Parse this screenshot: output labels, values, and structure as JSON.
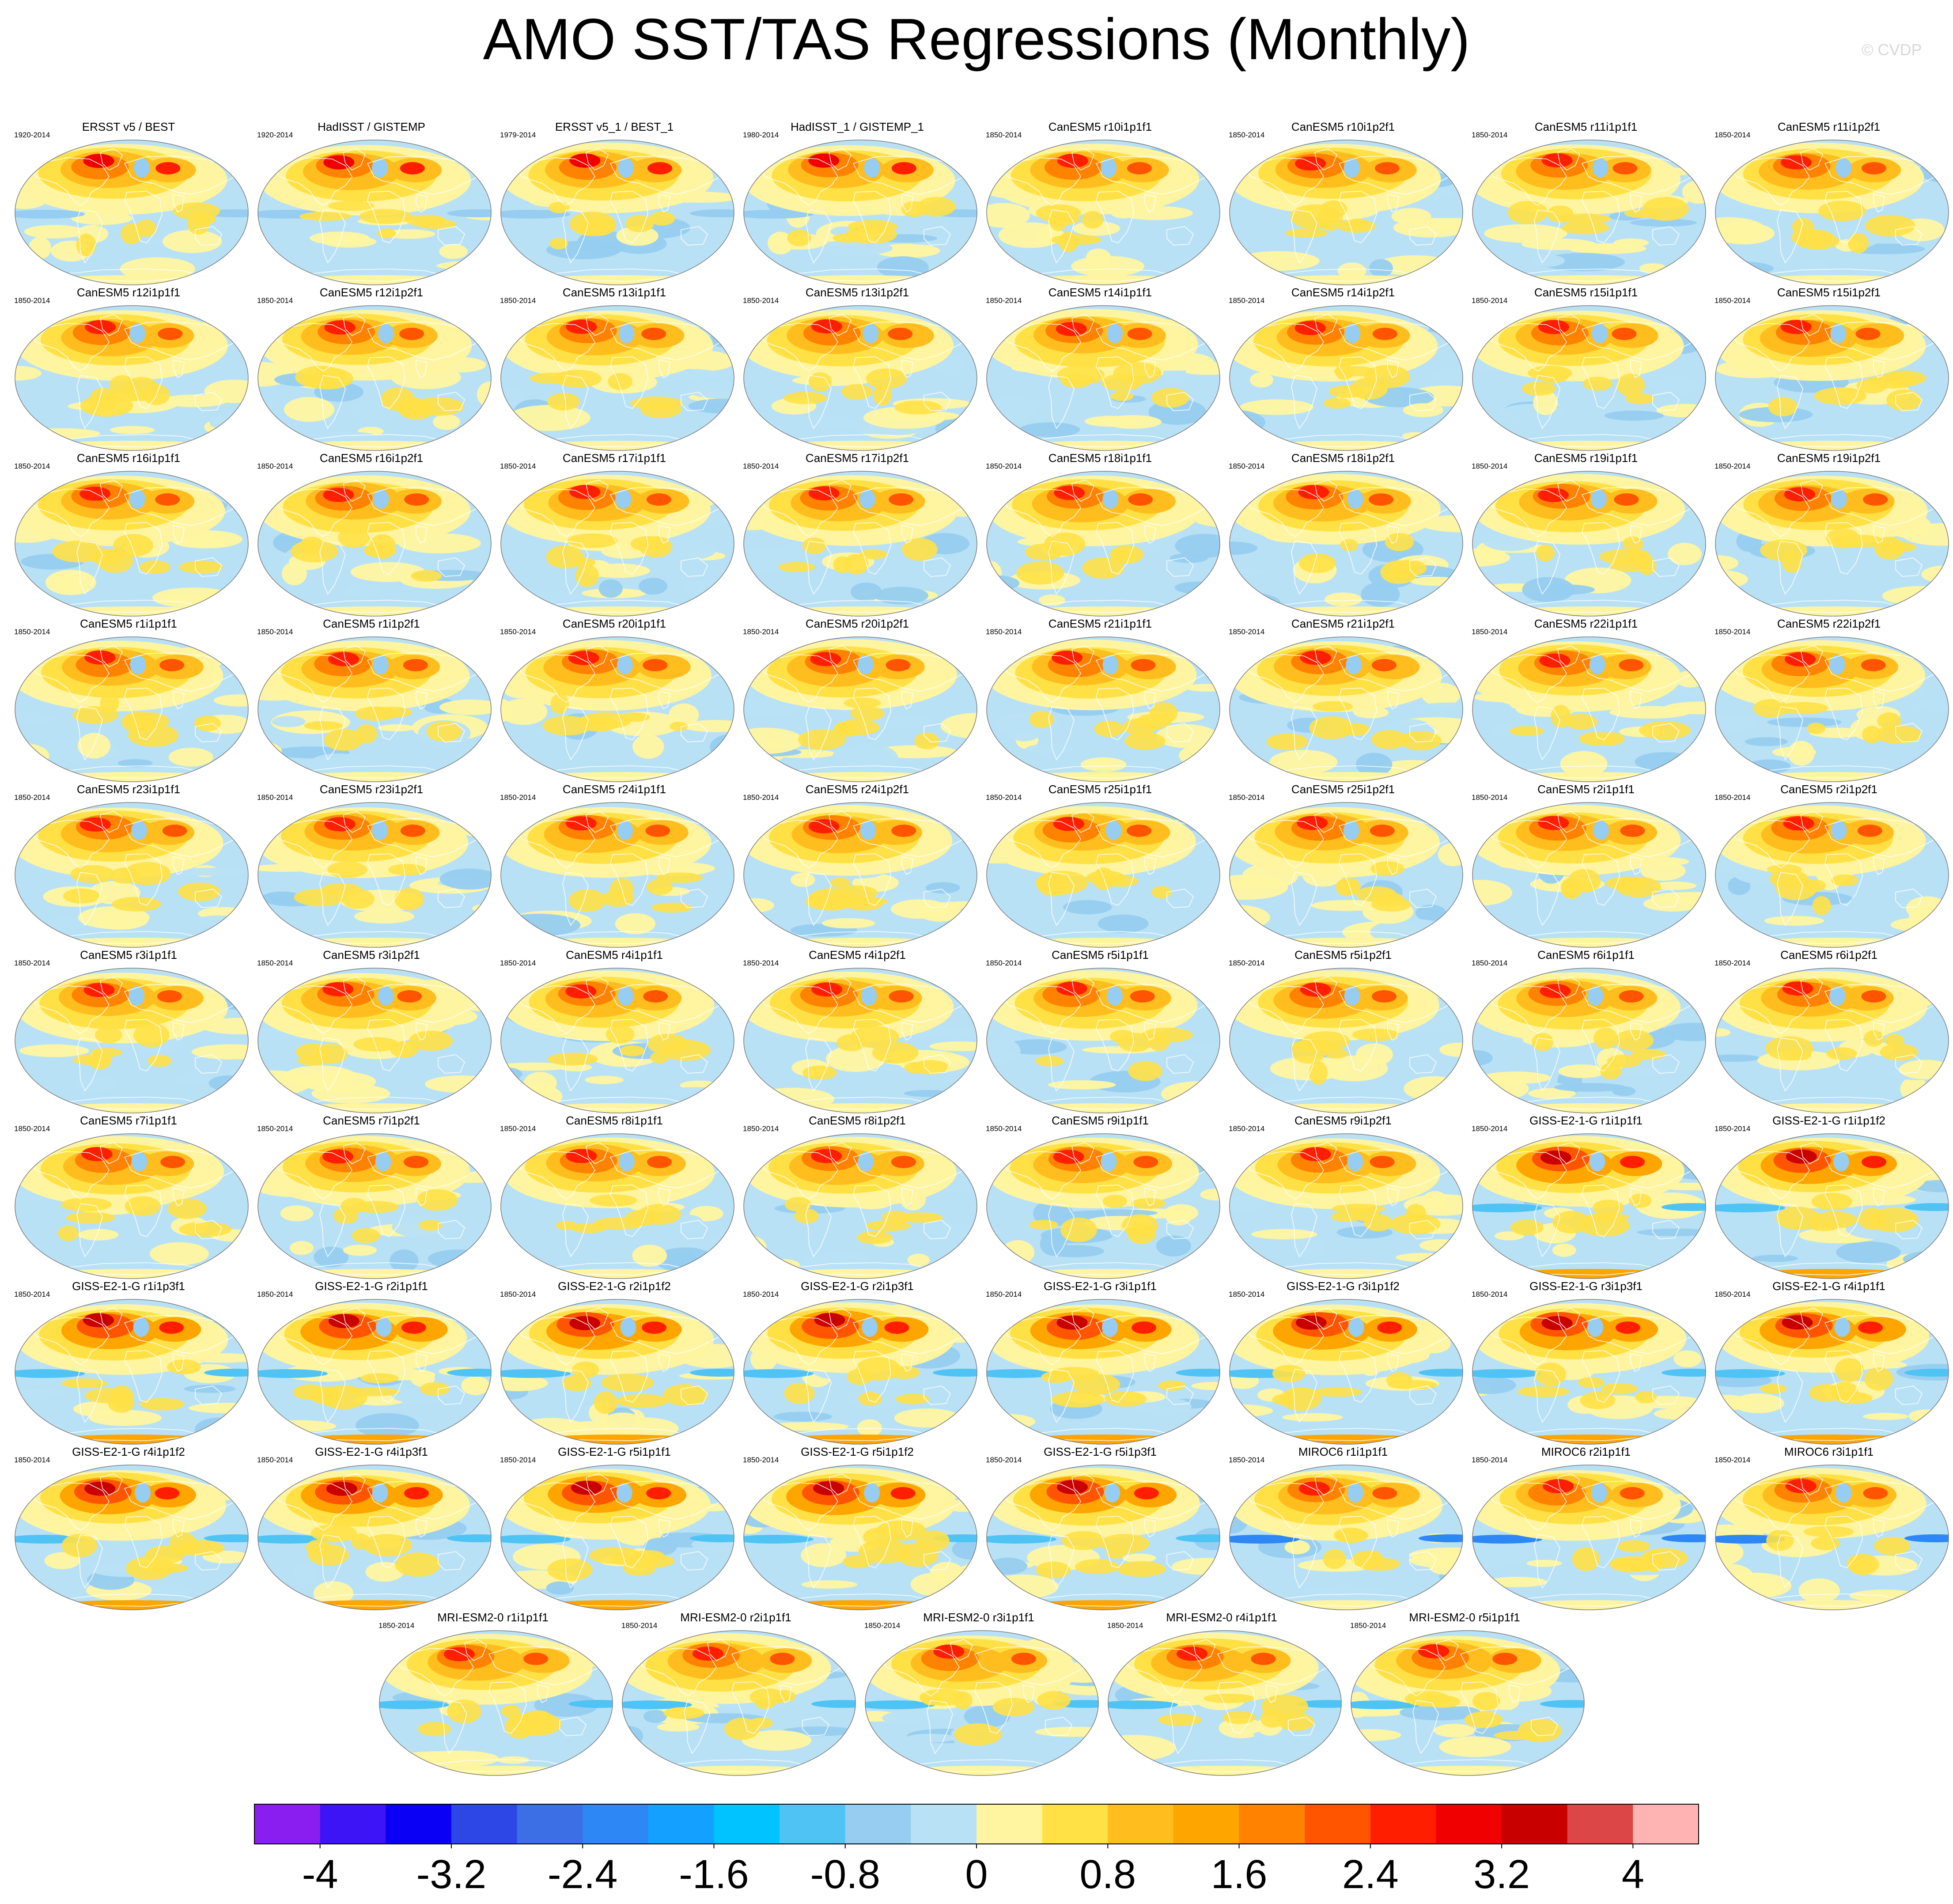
{
  "page": {
    "title": "AMO SST/TAS Regressions (Monthly)",
    "watermark": "© CVDP"
  },
  "chart_data": {
    "type": "heatmap",
    "projection": "global map panels",
    "panels": [
      {
        "title": "ERSST v5 / BEST",
        "years": "1920-2014"
      },
      {
        "title": "HadISST / GISTEMP",
        "years": "1920-2014"
      },
      {
        "title": "ERSST v5_1 / BEST_1",
        "years": "1979-2014"
      },
      {
        "title": "HadISST_1 / GISTEMP_1",
        "years": "1980-2014"
      },
      {
        "title": "CanESM5 r10i1p1f1",
        "years": "1850-2014"
      },
      {
        "title": "CanESM5 r10i1p2f1",
        "years": "1850-2014"
      },
      {
        "title": "CanESM5 r11i1p1f1",
        "years": "1850-2014"
      },
      {
        "title": "CanESM5 r11i1p2f1",
        "years": "1850-2014"
      },
      {
        "title": "CanESM5 r12i1p1f1",
        "years": "1850-2014"
      },
      {
        "title": "CanESM5 r12i1p2f1",
        "years": "1850-2014"
      },
      {
        "title": "CanESM5 r13i1p1f1",
        "years": "1850-2014"
      },
      {
        "title": "CanESM5 r13i1p2f1",
        "years": "1850-2014"
      },
      {
        "title": "CanESM5 r14i1p1f1",
        "years": "1850-2014"
      },
      {
        "title": "CanESM5 r14i1p2f1",
        "years": "1850-2014"
      },
      {
        "title": "CanESM5 r15i1p1f1",
        "years": "1850-2014"
      },
      {
        "title": "CanESM5 r15i1p2f1",
        "years": "1850-2014"
      },
      {
        "title": "CanESM5 r16i1p1f1",
        "years": "1850-2014"
      },
      {
        "title": "CanESM5 r16i1p2f1",
        "years": "1850-2014"
      },
      {
        "title": "CanESM5 r17i1p1f1",
        "years": "1850-2014"
      },
      {
        "title": "CanESM5 r17i1p2f1",
        "years": "1850-2014"
      },
      {
        "title": "CanESM5 r18i1p1f1",
        "years": "1850-2014"
      },
      {
        "title": "CanESM5 r18i1p2f1",
        "years": "1850-2014"
      },
      {
        "title": "CanESM5 r19i1p1f1",
        "years": "1850-2014"
      },
      {
        "title": "CanESM5 r19i1p2f1",
        "years": "1850-2014"
      },
      {
        "title": "CanESM5 r1i1p1f1",
        "years": "1850-2014"
      },
      {
        "title": "CanESM5 r1i1p2f1",
        "years": "1850-2014"
      },
      {
        "title": "CanESM5 r20i1p1f1",
        "years": "1850-2014"
      },
      {
        "title": "CanESM5 r20i1p2f1",
        "years": "1850-2014"
      },
      {
        "title": "CanESM5 r21i1p1f1",
        "years": "1850-2014"
      },
      {
        "title": "CanESM5 r21i1p2f1",
        "years": "1850-2014"
      },
      {
        "title": "CanESM5 r22i1p1f1",
        "years": "1850-2014"
      },
      {
        "title": "CanESM5 r22i1p2f1",
        "years": "1850-2014"
      },
      {
        "title": "CanESM5 r23i1p1f1",
        "years": "1850-2014"
      },
      {
        "title": "CanESM5 r23i1p2f1",
        "years": "1850-2014"
      },
      {
        "title": "CanESM5 r24i1p1f1",
        "years": "1850-2014"
      },
      {
        "title": "CanESM5 r24i1p2f1",
        "years": "1850-2014"
      },
      {
        "title": "CanESM5 r25i1p1f1",
        "years": "1850-2014"
      },
      {
        "title": "CanESM5 r25i1p2f1",
        "years": "1850-2014"
      },
      {
        "title": "CanESM5 r2i1p1f1",
        "years": "1850-2014"
      },
      {
        "title": "CanESM5 r2i1p2f1",
        "years": "1850-2014"
      },
      {
        "title": "CanESM5 r3i1p1f1",
        "years": "1850-2014"
      },
      {
        "title": "CanESM5 r3i1p2f1",
        "years": "1850-2014"
      },
      {
        "title": "CanESM5 r4i1p1f1",
        "years": "1850-2014"
      },
      {
        "title": "CanESM5 r4i1p2f1",
        "years": "1850-2014"
      },
      {
        "title": "CanESM5 r5i1p1f1",
        "years": "1850-2014"
      },
      {
        "title": "CanESM5 r5i1p2f1",
        "years": "1850-2014"
      },
      {
        "title": "CanESM5 r6i1p1f1",
        "years": "1850-2014"
      },
      {
        "title": "CanESM5 r6i1p2f1",
        "years": "1850-2014"
      },
      {
        "title": "CanESM5 r7i1p1f1",
        "years": "1850-2014"
      },
      {
        "title": "CanESM5 r7i1p2f1",
        "years": "1850-2014"
      },
      {
        "title": "CanESM5 r8i1p1f1",
        "years": "1850-2014"
      },
      {
        "title": "CanESM5 r8i1p2f1",
        "years": "1850-2014"
      },
      {
        "title": "CanESM5 r9i1p1f1",
        "years": "1850-2014"
      },
      {
        "title": "CanESM5 r9i1p2f1",
        "years": "1850-2014"
      },
      {
        "title": "GISS-E2-1-G r1i1p1f1",
        "years": "1850-2014"
      },
      {
        "title": "GISS-E2-1-G r1i1p1f2",
        "years": "1850-2014"
      },
      {
        "title": "GISS-E2-1-G r1i1p3f1",
        "years": "1850-2014"
      },
      {
        "title": "GISS-E2-1-G r2i1p1f1",
        "years": "1850-2014"
      },
      {
        "title": "GISS-E2-1-G r2i1p1f2",
        "years": "1850-2014"
      },
      {
        "title": "GISS-E2-1-G r2i1p3f1",
        "years": "1850-2014"
      },
      {
        "title": "GISS-E2-1-G r3i1p1f1",
        "years": "1850-2014"
      },
      {
        "title": "GISS-E2-1-G r3i1p1f2",
        "years": "1850-2014"
      },
      {
        "title": "GISS-E2-1-G r3i1p3f1",
        "years": "1850-2014"
      },
      {
        "title": "GISS-E2-1-G r4i1p1f1",
        "years": "1850-2014"
      },
      {
        "title": "GISS-E2-1-G r4i1p1f2",
        "years": "1850-2014"
      },
      {
        "title": "GISS-E2-1-G r4i1p3f1",
        "years": "1850-2014"
      },
      {
        "title": "GISS-E2-1-G r5i1p1f1",
        "years": "1850-2014"
      },
      {
        "title": "GISS-E2-1-G r5i1p1f2",
        "years": "1850-2014"
      },
      {
        "title": "GISS-E2-1-G r5i1p3f1",
        "years": "1850-2014"
      },
      {
        "title": "MIROC6 r1i1p1f1",
        "years": "1850-2014"
      },
      {
        "title": "MIROC6 r2i1p1f1",
        "years": "1850-2014"
      },
      {
        "title": "MIROC6 r3i1p1f1",
        "years": "1850-2014"
      },
      {
        "title": "MRI-ESM2-0 r1i1p1f1",
        "years": "1850-2014"
      },
      {
        "title": "MRI-ESM2-0 r2i1p1f1",
        "years": "1850-2014"
      },
      {
        "title": "MRI-ESM2-0 r3i1p1f1",
        "years": "1850-2014"
      },
      {
        "title": "MRI-ESM2-0 r4i1p1f1",
        "years": "1850-2014"
      },
      {
        "title": "MRI-ESM2-0 r5i1p1f1",
        "years": "1850-2014"
      }
    ],
    "colorbar": {
      "range": [
        -4.4,
        4.4
      ],
      "step": 0.4,
      "ticks": [
        -4,
        -3.2,
        -2.4,
        -1.6,
        -0.8,
        0,
        0.8,
        1.6,
        2.4,
        3.2,
        4
      ],
      "colors": [
        "#8a1ef0",
        "#3c14f5",
        "#0a00f5",
        "#2d46e6",
        "#3c6ee6",
        "#2d87f5",
        "#14a0ff",
        "#00c3ff",
        "#50c3f5",
        "#96cdf0",
        "#b9e1f5",
        "#fff5a0",
        "#ffe146",
        "#ffbe1e",
        "#ffa500",
        "#ff8200",
        "#ff5500",
        "#ff1e00",
        "#f00000",
        "#c80000",
        "#dc4646",
        "#ffb4b4"
      ]
    }
  }
}
